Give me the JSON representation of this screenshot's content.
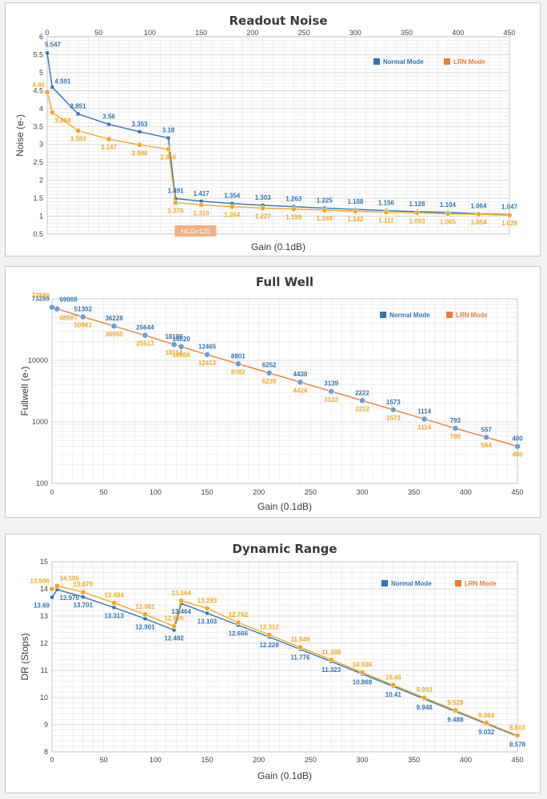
{
  "colors": {
    "normal": "#2e75b6",
    "lrn": "#f5a623",
    "lrn_legend": "#ed7d31",
    "fw_line": "#ed7d31",
    "fw_marker": "#6a9fd8",
    "hcg_box": "#f4b183"
  },
  "chart_data": [
    {
      "type": "line",
      "title": "Readout Noise",
      "xlabel": "Gain (0.1dB)",
      "ylabel": "Noise (e-)",
      "xlim": [
        0,
        450
      ],
      "ylim": [
        0.5,
        6
      ],
      "x_ticks": [
        "0",
        "50",
        "100",
        "150",
        "200",
        "250",
        "300",
        "350",
        "400",
        "450"
      ],
      "y_ticks": [
        "0.5",
        "1",
        "1.5",
        "2",
        "2.5",
        "3",
        "3.5",
        "4",
        "4.5",
        "5",
        "5.5",
        "6"
      ],
      "x_axis_position": "top",
      "annotation": "HCG=125",
      "legend": [
        "Normal Mode",
        "LRN Mode"
      ],
      "series": [
        {
          "name": "Normal Mode",
          "x": [
            0,
            5,
            30,
            60,
            90,
            118,
            125,
            150,
            180,
            210,
            240,
            270,
            300,
            330,
            360,
            390,
            420,
            450
          ],
          "values": [
            5.547,
            4.591,
            3.851,
            3.56,
            3.353,
            3.18,
            1.491,
            1.417,
            1.354,
            1.303,
            1.263,
            1.225,
            1.188,
            1.156,
            1.128,
            1.104,
            1.064,
            1.047
          ],
          "labels": [
            "5.547",
            "4.591",
            "3.851",
            "3.56",
            "3.353",
            "3.18",
            "1.491",
            "1.417",
            "1.354",
            "1.303",
            "1.263",
            "1.225",
            "1.188",
            "1.156",
            "1.128",
            "1.104",
            "1.064",
            "1.047"
          ]
        },
        {
          "name": "LRN Mode",
          "x": [
            0,
            5,
            30,
            60,
            90,
            118,
            125,
            150,
            180,
            210,
            240,
            270,
            300,
            330,
            360,
            390,
            420,
            450
          ],
          "values": [
            4.46,
            3.894,
            3.383,
            3.147,
            2.986,
            2.866,
            1.376,
            1.316,
            1.264,
            1.227,
            1.199,
            1.169,
            1.142,
            1.111,
            1.093,
            1.065,
            1.054,
            1.029
          ],
          "labels": [
            "4.46",
            "3.894",
            "3.383",
            "3.147",
            "2.986",
            "2.866",
            "1.376",
            "1.316",
            "1.264",
            "1.227",
            "1.199",
            "1.169",
            "1.142",
            "1.111",
            "1.093",
            "1.065",
            "1.054",
            "1.029"
          ]
        }
      ]
    },
    {
      "type": "line",
      "title": "Full Well",
      "xlabel": "Gain (0.1dB)",
      "ylabel": "Fullwell (e-)",
      "xlim": [
        0,
        450
      ],
      "ylim": [
        100,
        100000
      ],
      "yscale": "log",
      "x_ticks": [
        "0",
        "50",
        "100",
        "150",
        "200",
        "250",
        "300",
        "350",
        "400",
        "450"
      ],
      "y_ticks": [
        "100",
        "1000",
        "10000"
      ],
      "legend": [
        "Normal Mode",
        "LRN Mode"
      ],
      "series": [
        {
          "name": "Normal Mode",
          "x": [
            0,
            5,
            30,
            60,
            90,
            118,
            125,
            150,
            180,
            210,
            240,
            270,
            300,
            330,
            360,
            390,
            420,
            450
          ],
          "values": [
            73289,
            69009,
            51302,
            36228,
            25644,
            18186,
            16620,
            12465,
            8801,
            6252,
            4430,
            3139,
            2222,
            1573,
            1114,
            793,
            557,
            400
          ],
          "labels": [
            "73289",
            "69009",
            "51302",
            "36228",
            "25644",
            "18186",
            "16620",
            "12465",
            "8801",
            "6252",
            "4430",
            "3139",
            "2222",
            "1573",
            "1114",
            "793",
            "557",
            "400"
          ]
        },
        {
          "name": "LRN Mode",
          "x": [
            0,
            5,
            30,
            60,
            90,
            118,
            125,
            150,
            180,
            210,
            240,
            270,
            300,
            330,
            360,
            390,
            420,
            450
          ],
          "values": [
            72889,
            68597,
            50961,
            36058,
            25513,
            18114,
            16666,
            12413,
            8782,
            6239,
            4424,
            3133,
            2222,
            1573,
            1114,
            786,
            564,
            400
          ],
          "labels": [
            "72889",
            "68597",
            "50961",
            "36058",
            "25513",
            "18114",
            "16666",
            "12413",
            "8782",
            "6239",
            "4424",
            "3133",
            "2222",
            "1573",
            "1114",
            "786",
            "564",
            "400"
          ]
        }
      ]
    },
    {
      "type": "line",
      "title": "Dynamic Range",
      "xlabel": "Gain (0.1dB)",
      "ylabel": "DR (Stops)",
      "xlim": [
        0,
        450
      ],
      "ylim": [
        8,
        15
      ],
      "x_ticks": [
        "0",
        "50",
        "100",
        "150",
        "200",
        "250",
        "300",
        "350",
        "400",
        "450"
      ],
      "y_ticks": [
        "8",
        "9",
        "10",
        "11",
        "12",
        "13",
        "14",
        "15"
      ],
      "legend": [
        "Normal Mode",
        "LRN Mode"
      ],
      "series": [
        {
          "name": "Normal Mode",
          "x": [
            0,
            5,
            30,
            60,
            90,
            118,
            125,
            150,
            180,
            210,
            240,
            270,
            300,
            330,
            360,
            390,
            420,
            450
          ],
          "values": [
            13.69,
            13.976,
            13.701,
            13.313,
            12.901,
            12.482,
            13.464,
            13.103,
            12.666,
            12.228,
            11.776,
            11.323,
            10.869,
            10.41,
            9.948,
            9.488,
            9.032,
            8.578
          ],
          "labels": [
            "13.69",
            "13.976",
            "13.701",
            "13.313",
            "12.901",
            "12.482",
            "13.464",
            "13.103",
            "12.666",
            "12.228",
            "11.776",
            "11.323",
            "10.869",
            "10.41",
            "9.948",
            "9.488",
            "9.032",
            "8.578"
          ]
        },
        {
          "name": "LRN Mode",
          "x": [
            0,
            5,
            30,
            60,
            90,
            118,
            125,
            150,
            180,
            210,
            240,
            270,
            300,
            330,
            360,
            390,
            420,
            450
          ],
          "values": [
            13.996,
            14.105,
            13.879,
            13.484,
            13.061,
            12.626,
            13.564,
            13.283,
            12.762,
            12.312,
            11.849,
            11.388,
            10.926,
            10.46,
            9.993,
            9.528,
            9.064,
            8.603
          ],
          "labels": [
            "13.996",
            "14.105",
            "13.879",
            "13.484",
            "13.061",
            "12.626",
            "13.564",
            "13.283",
            "12.762",
            "12.312",
            "11.849",
            "11.388",
            "10.926",
            "10.46",
            "9.993",
            "9.528",
            "9.064",
            "8.603"
          ]
        }
      ]
    }
  ]
}
